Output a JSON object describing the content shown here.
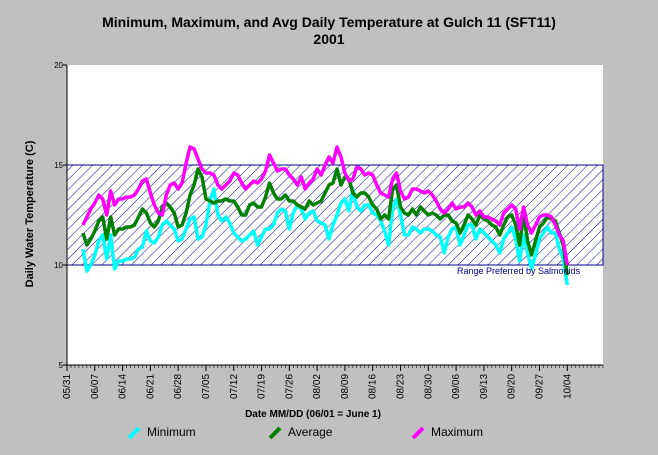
{
  "title": "Minimum, Maximum, and Avg Daily Temperature at Gulch 11 (SFT11)",
  "subtitle": "2001",
  "colors": {
    "minimum": "#00ffff",
    "average": "#008000",
    "maximum": "#ff00ff",
    "band": "#00008b",
    "plot_bg": "#ffffff"
  },
  "chart_data": {
    "type": "line",
    "title": "Minimum, Maximum, and Avg Daily Temperature at Gulch 11 (SFT11)",
    "subtitle": "2001",
    "xlabel": "Date MM/DD (06/01 = June 1)",
    "ylabel": "Daily Water Temperature (C)",
    "xlim": [
      "05/31",
      "10/13"
    ],
    "ylim": [
      5,
      20
    ],
    "y_ticks": [
      5,
      10,
      15,
      20
    ],
    "x_ticks": [
      "05/31",
      "06/07",
      "06/14",
      "06/21",
      "06/28",
      "07/05",
      "07/12",
      "07/19",
      "07/26",
      "08/02",
      "08/09",
      "08/16",
      "08/23",
      "08/30",
      "09/06",
      "09/13",
      "09/20",
      "09/27",
      "10/04"
    ],
    "grid": false,
    "legend_position": "bottom",
    "band": {
      "low": 10,
      "high": 15,
      "label": "Range Preferred by Salmonids"
    },
    "x_start": "06/04",
    "series": [
      {
        "name": "Minimum",
        "values": [
          10.8,
          9.7,
          10.0,
          10.5,
          11.2,
          11.5,
          10.3,
          11.5,
          9.8,
          10.2,
          10.2,
          10.3,
          10.3,
          10.4,
          10.8,
          10.9,
          11.7,
          11.2,
          11.1,
          11.4,
          12.0,
          12.2,
          12.0,
          11.8,
          11.2,
          11.3,
          11.8,
          12.3,
          12.4,
          11.3,
          11.4,
          12.0,
          13.2,
          13.8,
          12.5,
          12.2,
          12.4,
          12.1,
          11.6,
          11.4,
          11.2,
          11.3,
          11.5,
          11.7,
          11.0,
          11.4,
          11.8,
          11.8,
          12.0,
          12.6,
          12.8,
          12.7,
          11.8,
          12.6,
          13.0,
          12.8,
          12.3,
          12.6,
          12.7,
          12.2,
          12.1,
          12.0,
          11.3,
          12.0,
          12.5,
          13.1,
          13.3,
          12.7,
          13.8,
          12.9,
          12.7,
          13.0,
          13.0,
          12.6,
          12.5,
          12.2,
          11.7,
          11.0,
          12.8,
          13.3,
          12.5,
          11.5,
          11.5,
          11.9,
          11.8,
          11.6,
          11.8,
          11.8,
          11.7,
          11.5,
          11.4,
          10.6,
          11.4,
          11.8,
          11.9,
          11.0,
          11.5,
          12.0,
          12.0,
          11.3,
          11.8,
          11.6,
          11.4,
          11.2,
          11.0,
          10.6,
          11.3,
          11.6,
          11.9,
          11.3,
          10.2,
          11.5,
          10.6,
          9.8,
          10.5,
          11.3,
          11.6,
          11.9,
          11.6,
          11.6,
          10.8,
          10.3,
          9.0
        ]
      },
      {
        "name": "Average",
        "values": [
          11.6,
          11.0,
          11.3,
          11.7,
          12.2,
          12.4,
          11.3,
          12.4,
          11.5,
          11.8,
          11.8,
          11.9,
          11.9,
          12.0,
          12.4,
          12.8,
          12.6,
          12.1,
          11.9,
          12.2,
          12.9,
          13.1,
          12.9,
          12.6,
          11.9,
          12.0,
          12.6,
          13.5,
          14.0,
          14.8,
          14.4,
          13.3,
          13.2,
          13.1,
          13.2,
          13.2,
          13.3,
          13.2,
          13.2,
          12.9,
          12.5,
          12.5,
          13.0,
          13.1,
          12.9,
          12.9,
          13.4,
          14.1,
          13.6,
          13.3,
          13.3,
          13.5,
          13.2,
          13.2,
          13.0,
          12.9,
          12.8,
          13.2,
          13.0,
          13.1,
          13.2,
          13.6,
          14.0,
          14.1,
          14.8,
          14.0,
          14.4,
          14.3,
          13.6,
          13.4,
          13.6,
          13.6,
          13.4,
          13.0,
          12.8,
          12.3,
          12.5,
          12.3,
          13.8,
          14.0,
          12.9,
          12.6,
          12.5,
          12.8,
          12.5,
          12.9,
          12.7,
          12.5,
          12.6,
          12.5,
          12.3,
          12.5,
          12.5,
          12.2,
          12.1,
          11.6,
          12.0,
          12.5,
          12.3,
          12.0,
          12.5,
          12.3,
          12.2,
          12.0,
          11.9,
          11.5,
          12.0,
          12.4,
          12.5,
          12.0,
          11.0,
          12.6,
          11.2,
          10.5,
          11.2,
          11.9,
          12.1,
          12.4,
          12.3,
          12.2,
          11.6,
          11.0,
          9.5
        ]
      },
      {
        "name": "Maximum",
        "values": [
          12.0,
          12.4,
          12.8,
          13.1,
          13.5,
          13.3,
          12.5,
          13.7,
          13.0,
          13.3,
          13.3,
          13.4,
          13.4,
          13.5,
          13.8,
          14.2,
          14.3,
          13.6,
          13.0,
          12.6,
          12.5,
          13.5,
          14.0,
          14.1,
          13.8,
          14.1,
          15.1,
          15.9,
          15.8,
          15.3,
          14.8,
          14.6,
          14.6,
          14.5,
          14.0,
          13.8,
          14.0,
          14.2,
          14.6,
          14.5,
          14.1,
          13.8,
          14.0,
          14.2,
          14.1,
          14.3,
          14.7,
          15.5,
          15.1,
          14.7,
          14.8,
          14.8,
          14.5,
          14.3,
          14.0,
          14.4,
          13.8,
          14.1,
          14.3,
          14.8,
          14.5,
          15.0,
          15.4,
          15.1,
          15.9,
          15.4,
          14.6,
          14.2,
          14.3,
          14.9,
          14.8,
          14.5,
          14.6,
          14.5,
          14.0,
          13.6,
          13.5,
          13.4,
          14.3,
          14.6,
          13.7,
          13.3,
          13.4,
          13.8,
          13.8,
          13.7,
          13.6,
          13.7,
          13.5,
          13.2,
          12.8,
          12.6,
          12.8,
          13.1,
          12.8,
          12.9,
          12.9,
          13.1,
          12.9,
          12.5,
          12.7,
          12.4,
          12.4,
          12.3,
          12.2,
          12.0,
          12.6,
          12.8,
          13.0,
          12.8,
          11.8,
          12.9,
          12.0,
          11.6,
          12.0,
          12.4,
          12.5,
          12.5,
          12.4,
          12.0,
          11.5,
          11.2,
          10.0
        ]
      }
    ]
  }
}
